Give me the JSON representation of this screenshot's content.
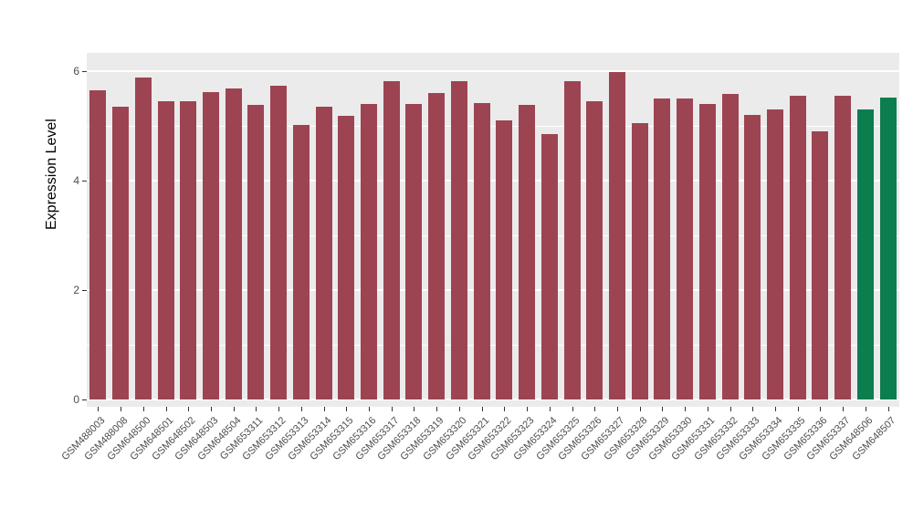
{
  "chart_data": {
    "type": "bar",
    "title": "",
    "xlabel": "",
    "ylabel": "Expression Level",
    "ylim": [
      0,
      6.2
    ],
    "yticks": [
      0,
      2,
      4,
      6
    ],
    "minor_ticks": [
      1,
      3,
      5
    ],
    "grid": true,
    "legend": "none",
    "panel_bg": "#EBEBEB",
    "grid_color": "#FFFFFF",
    "bar_color_default": "#9d4452",
    "bar_color_highlight": "#0b7d4f",
    "highlight_indices": [
      34,
      35
    ],
    "categories": [
      "GSM488003",
      "GSM488008",
      "GSM648500",
      "GSM648501",
      "GSM648502",
      "GSM648503",
      "GSM648504",
      "GSM653311",
      "GSM653312",
      "GSM653313",
      "GSM653314",
      "GSM653315",
      "GSM653316",
      "GSM653317",
      "GSM653318",
      "GSM653319",
      "GSM653320",
      "GSM653321",
      "GSM653322",
      "GSM653323",
      "GSM653324",
      "GSM653325",
      "GSM653326",
      "GSM653327",
      "GSM653328",
      "GSM653329",
      "GSM653330",
      "GSM653331",
      "GSM653332",
      "GSM653333",
      "GSM653334",
      "GSM653335",
      "GSM653336",
      "GSM653337",
      "GSM648506",
      "GSM648507"
    ],
    "values": [
      5.65,
      5.35,
      5.88,
      5.45,
      5.45,
      5.62,
      5.68,
      5.38,
      5.73,
      5.02,
      5.35,
      5.18,
      5.4,
      5.82,
      5.4,
      5.6,
      5.82,
      5.42,
      5.1,
      5.38,
      4.85,
      5.82,
      5.45,
      5.98,
      5.05,
      5.5,
      5.5,
      5.4,
      5.58,
      5.2,
      5.3,
      5.55,
      4.9,
      5.55,
      5.3,
      5.52
    ]
  }
}
